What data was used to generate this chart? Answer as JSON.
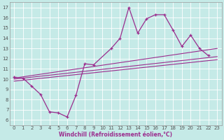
{
  "main_x": [
    0,
    1,
    2,
    3,
    4,
    5,
    6,
    7,
    8,
    9,
    11,
    12,
    13,
    14,
    15,
    16,
    17,
    18,
    19,
    20,
    21,
    22
  ],
  "main_y": [
    10.2,
    10.1,
    9.3,
    8.5,
    6.8,
    6.7,
    6.3,
    8.4,
    11.5,
    11.4,
    13.0,
    14.0,
    17.0,
    14.5,
    15.9,
    16.3,
    16.3,
    14.8,
    13.2,
    14.3,
    13.0,
    12.3
  ],
  "line2_x": [
    0,
    23
  ],
  "line2_y": [
    10.1,
    13.0
  ],
  "line3_x": [
    0,
    23
  ],
  "line3_y": [
    10.0,
    12.2
  ],
  "line4_x": [
    0,
    23
  ],
  "line4_y": [
    9.8,
    11.9
  ],
  "color": "#9B2D8E",
  "bg_color": "#C5EAE7",
  "xlabel": "Windchill (Refroidissement éolien,°C)",
  "xlim": [
    -0.5,
    23.5
  ],
  "ylim": [
    5.5,
    17.5
  ],
  "yticks": [
    6,
    7,
    8,
    9,
    10,
    11,
    12,
    13,
    14,
    15,
    16,
    17
  ],
  "xticks": [
    0,
    1,
    2,
    3,
    4,
    5,
    6,
    7,
    8,
    9,
    10,
    11,
    12,
    13,
    14,
    15,
    16,
    17,
    18,
    19,
    20,
    21,
    22,
    23
  ]
}
